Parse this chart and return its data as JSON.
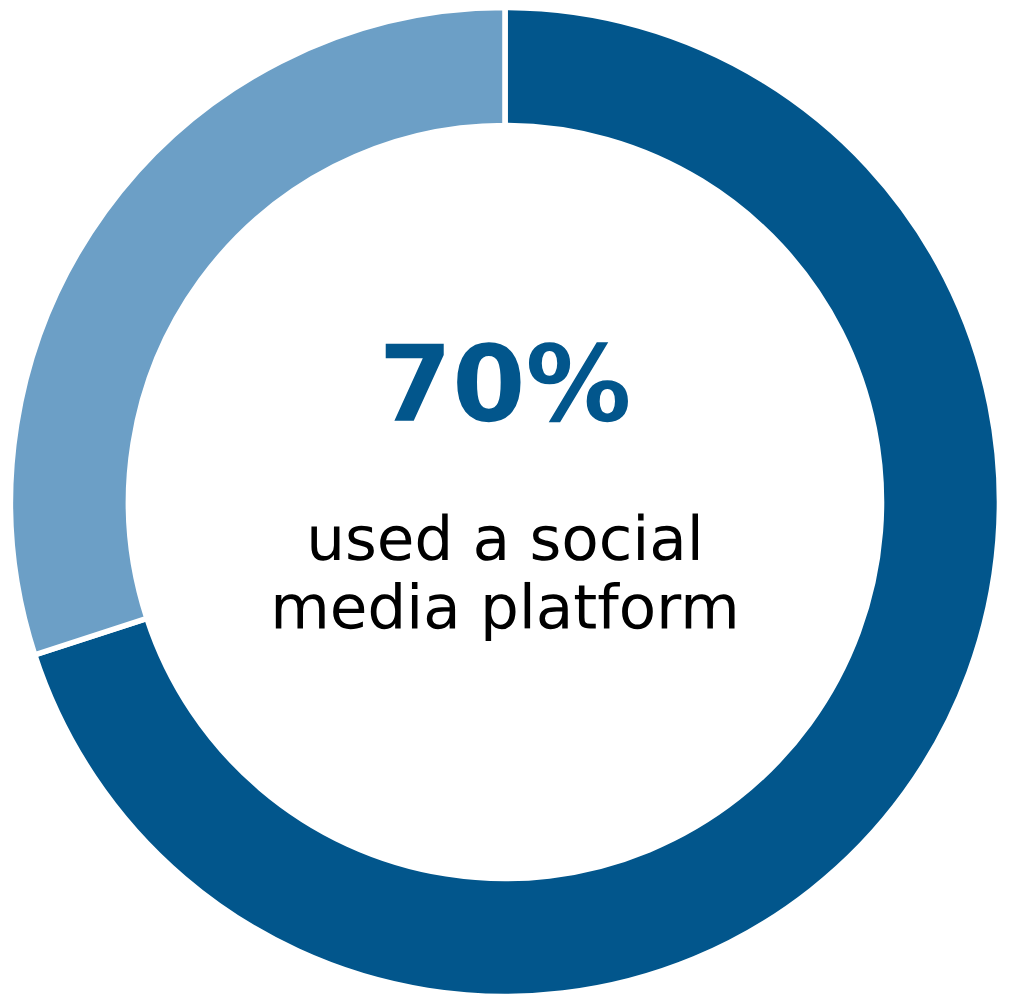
{
  "chart_data": {
    "type": "donut",
    "categories": [
      null,
      null
    ],
    "values": [
      70,
      30
    ],
    "colors": [
      "#02568c",
      "#6c9fc6"
    ],
    "value_labels": [
      "70%",
      null
    ],
    "annotations": [
      "used a social\nmedia platform"
    ]
  }
}
